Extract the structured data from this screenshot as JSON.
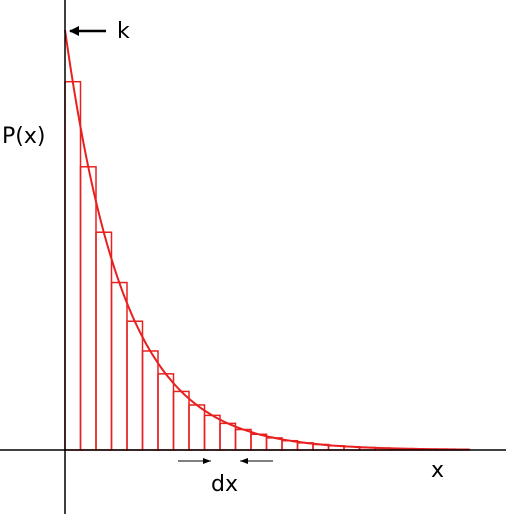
{
  "labels": {
    "k": "k",
    "y_axis": "P(x)",
    "x_axis": "x",
    "bin_width": "dx"
  }
}
